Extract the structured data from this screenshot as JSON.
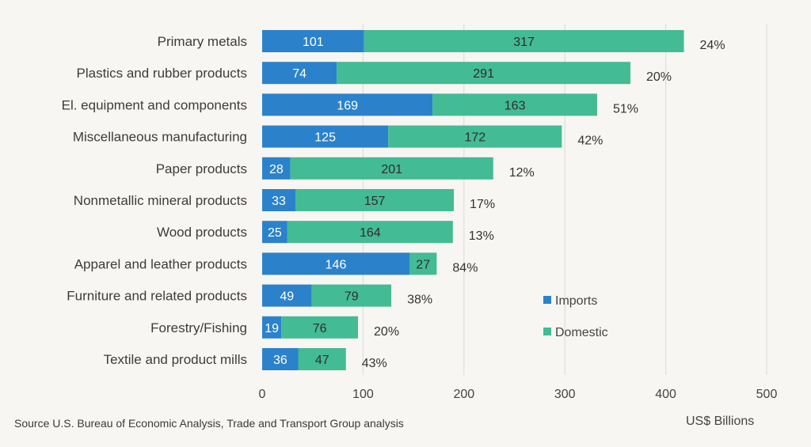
{
  "chart_data": {
    "type": "bar",
    "orientation": "horizontal",
    "stacked": true,
    "categories": [
      "Primary metals",
      "Plastics and rubber products",
      "El. equipment and components",
      "Miscellaneous manufacturing",
      "Paper products",
      "Nonmetallic mineral products",
      "Wood products",
      "Apparel and leather products",
      "Furniture and related products",
      "Forestry/Fishing",
      "Textile and product mills"
    ],
    "series": [
      {
        "name": "Imports",
        "color": "#2b82cb",
        "values": [
          101,
          74,
          169,
          125,
          28,
          33,
          25,
          146,
          49,
          19,
          36
        ]
      },
      {
        "name": "Domestic",
        "color": "#43bb94",
        "values": [
          317,
          291,
          163,
          172,
          201,
          157,
          164,
          27,
          79,
          76,
          47
        ]
      }
    ],
    "share_labels": [
      "24%",
      "20%",
      "51%",
      "42%",
      "12%",
      "17%",
      "13%",
      "84%",
      "38%",
      "20%",
      "43%"
    ],
    "xlim": [
      0,
      500
    ],
    "xticks": [
      0,
      100,
      200,
      300,
      400,
      500
    ],
    "xlabel": "US$ Billions",
    "grid": true,
    "legend_position": "bottom-right"
  },
  "source_note": "Source U.S. Bureau of Economic Analysis, Trade and Transport Group analysis"
}
